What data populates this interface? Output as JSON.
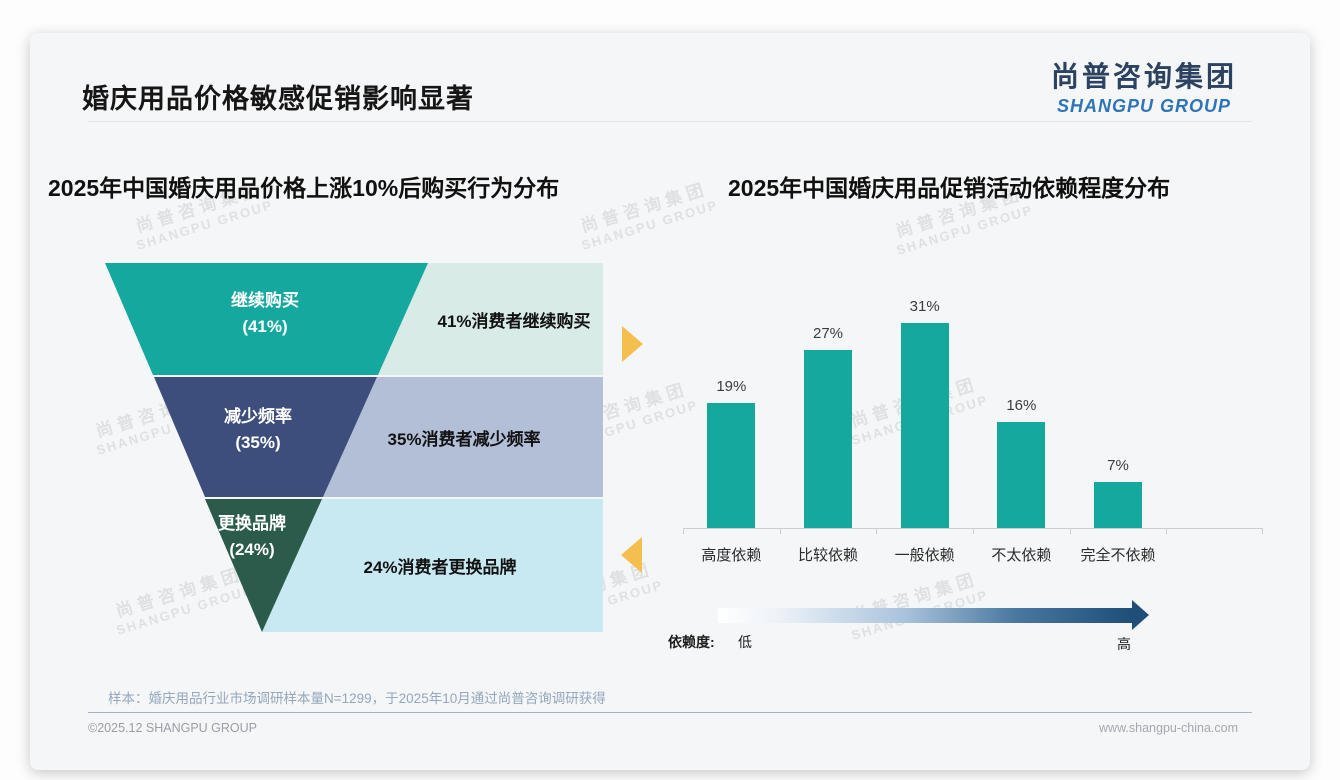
{
  "header": {
    "title": "婚庆用品价格敏感促销影响显著",
    "logo_cn": "尚普咨询集团",
    "logo_en": "SHANGPU GROUP"
  },
  "watermark": {
    "cn": "尚普咨询集团",
    "en": "SHANGPU GROUP"
  },
  "chart_data": [
    {
      "type": "funnel",
      "title": "2025年中国婚庆用品价格上涨10%后购买行为分布",
      "categories": [
        "继续购买",
        "减少频率",
        "更换品牌"
      ],
      "values": [
        41,
        35,
        24
      ],
      "unit": "%",
      "segments": [
        {
          "label": "继续购买",
          "pct_label": "(41%)",
          "value": 41,
          "annotation": "41%消费者继续购买",
          "color": "#15a89e",
          "panel_color": "#d9ebe7"
        },
        {
          "label": "减少频率",
          "pct_label": "(35%)",
          "value": 35,
          "annotation": "35%消费者减少频率",
          "color": "#3e4e7c",
          "panel_color": "#b3bed7"
        },
        {
          "label": "更换品牌",
          "pct_label": "(24%)",
          "value": 24,
          "annotation": "24%消费者更换品牌",
          "color": "#2b5b4a",
          "panel_color": "#c8e9f2"
        }
      ]
    },
    {
      "type": "bar",
      "title": "2025年中国婚庆用品促销活动依赖程度分布",
      "categories": [
        "高度依赖",
        "比较依赖",
        "一般依赖",
        "不太依赖",
        "完全不依赖"
      ],
      "values": [
        19,
        27,
        31,
        16,
        7
      ],
      "unit": "%",
      "bar_color": "#15a89e",
      "ylim": [
        0,
        35
      ],
      "grid": false,
      "legend": "none"
    }
  ],
  "dependency_axis": {
    "label": "依赖度:",
    "low": "低",
    "high": "高"
  },
  "footnote": "样本：婚庆用品行业市场调研样本量N=1299，于2025年10月通过尚普咨询调研获得",
  "footer": {
    "left": "©2025.12 SHANGPU GROUP",
    "right": "www.shangpu-china.com"
  }
}
